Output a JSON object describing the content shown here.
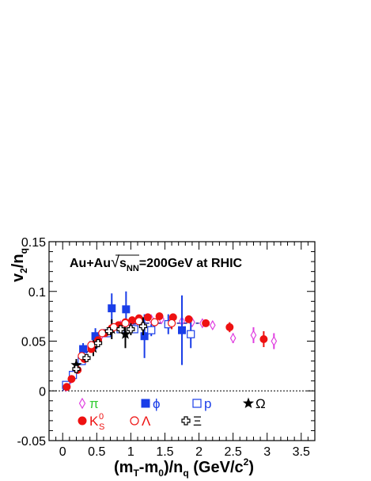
{
  "chart_data": {
    "type": "scatter",
    "title": "",
    "annotation": {
      "prefix": "Au+Au",
      "sqrt_symbol": "√",
      "s": "s",
      "nn": "NN",
      "suffix": "=200GeV at RHIC"
    },
    "xlabel": {
      "open": "(m",
      "sub1": "T",
      "mid": "-m",
      "sub2": "0",
      "mid2": ")/n",
      "sub3": "q",
      "unit": " (GeV/c",
      "sup": "2",
      "close": ")"
    },
    "ylabel": {
      "main": "v",
      "sub1": "2",
      "slash": "/n",
      "sub2": "q"
    },
    "xlim": [
      -0.2,
      3.7
    ],
    "ylim": [
      -0.05,
      0.15
    ],
    "xticks": [
      "0",
      "0.5",
      "1",
      "1.5",
      "2",
      "2.5",
      "3",
      "3.5"
    ],
    "xtick_values": [
      0,
      0.5,
      1,
      1.5,
      2,
      2.5,
      3,
      3.5
    ],
    "yticks": [
      "-0.05",
      "0",
      "0.05",
      "0.1",
      "0.15"
    ],
    "ytick_values": [
      -0.05,
      0,
      0.05,
      0.1,
      0.15
    ],
    "zero_line": true,
    "legend": {
      "placement": "bottom",
      "entries": [
        {
          "key": "pi",
          "label": "π",
          "marker": "diamond-open",
          "color": "#e040e0",
          "label_color": "#33cc33"
        },
        {
          "key": "phi",
          "label": "ϕ",
          "marker": "square-filled",
          "color": "#1a3ee8",
          "label_color": "#1a3ee8"
        },
        {
          "key": "p",
          "label": "p",
          "marker": "square-open",
          "color": "#1a3ee8",
          "label_color": "#1a3ee8"
        },
        {
          "key": "omega",
          "label": "Ω",
          "marker": "star",
          "color": "#000000",
          "label_color": "#000000"
        },
        {
          "key": "ks",
          "label": "K",
          "sub": "S",
          "sup": "0",
          "marker": "circle-filled",
          "color": "#ee1111",
          "label_color": "#ee1111"
        },
        {
          "key": "lambda",
          "label": "Λ",
          "marker": "circle-open",
          "color": "#ee1111",
          "label_color": "#ee1111"
        },
        {
          "key": "xi",
          "label": "Ξ",
          "marker": "cross-open",
          "color": "#000000",
          "label_color": "#000000"
        }
      ]
    },
    "series": [
      {
        "key": "pi",
        "marker": "diamond-open",
        "color": "#e040e0",
        "x": [
          0.05,
          0.12,
          0.2,
          0.3,
          0.4,
          0.55,
          0.7,
          0.85,
          1.0,
          1.15,
          1.3,
          1.45,
          1.6,
          1.75,
          1.9,
          2.05,
          2.2,
          2.5,
          2.8,
          3.1
        ],
        "y": [
          0.004,
          0.012,
          0.022,
          0.033,
          0.044,
          0.054,
          0.061,
          0.066,
          0.069,
          0.071,
          0.072,
          0.072,
          0.071,
          0.07,
          0.069,
          0.068,
          0.066,
          0.053,
          0.056,
          0.05
        ],
        "yerr": [
          0.001,
          0.001,
          0.001,
          0.001,
          0.001,
          0.001,
          0.001,
          0.001,
          0.002,
          0.002,
          0.002,
          0.002,
          0.003,
          0.003,
          0.003,
          0.004,
          0.004,
          0.005,
          0.008,
          0.008
        ]
      },
      {
        "key": "phi",
        "marker": "square-filled",
        "color": "#1a3ee8",
        "x": [
          0.3,
          0.48,
          0.72,
          0.93,
          1.2,
          1.75
        ],
        "y": [
          0.042,
          0.055,
          0.083,
          0.082,
          0.055,
          0.061
        ],
        "yerr": [
          0.006,
          0.008,
          0.015,
          0.018,
          0.022,
          0.035
        ]
      },
      {
        "key": "p",
        "marker": "square-open",
        "color": "#1a3ee8",
        "x": [
          0.05,
          0.15,
          0.28,
          0.45,
          0.65,
          0.85,
          1.05,
          1.3,
          1.55,
          1.88
        ],
        "y": [
          0.006,
          0.016,
          0.03,
          0.046,
          0.058,
          0.062,
          0.062,
          0.061,
          0.067,
          0.057
        ],
        "yerr": [
          0.001,
          0.001,
          0.001,
          0.002,
          0.002,
          0.003,
          0.004,
          0.006,
          0.01,
          0.014
        ]
      },
      {
        "key": "omega",
        "marker": "star",
        "color": "#000000",
        "x": [
          0.2,
          0.45,
          0.72,
          0.92
        ],
        "y": [
          0.026,
          0.043,
          0.062,
          0.057
        ],
        "yerr": [
          0.006,
          0.008,
          0.01,
          0.014
        ]
      },
      {
        "key": "ks",
        "marker": "circle-filled",
        "color": "#ee1111",
        "x": [
          0.06,
          0.13,
          0.22,
          0.32,
          0.42,
          0.52,
          0.62,
          0.72,
          0.82,
          0.92,
          1.02,
          1.12,
          1.25,
          1.42,
          1.62,
          1.85,
          2.1,
          2.45,
          2.95
        ],
        "y": [
          0.004,
          0.012,
          0.021,
          0.032,
          0.042,
          0.051,
          0.058,
          0.063,
          0.066,
          0.069,
          0.071,
          0.073,
          0.074,
          0.075,
          0.074,
          0.072,
          0.068,
          0.064,
          0.052
        ],
        "yerr": [
          0.0008,
          0.0008,
          0.0008,
          0.0008,
          0.0008,
          0.0008,
          0.0008,
          0.001,
          0.001,
          0.001,
          0.001,
          0.0012,
          0.0015,
          0.002,
          0.002,
          0.003,
          0.003,
          0.005,
          0.008
        ]
      },
      {
        "key": "lambda",
        "marker": "circle-open",
        "color": "#ee1111",
        "x": [
          0.28,
          0.42,
          0.58,
          0.75,
          0.92,
          1.12,
          1.35,
          1.6
        ],
        "y": [
          0.035,
          0.046,
          0.058,
          0.064,
          0.068,
          0.07,
          0.069,
          0.068
        ],
        "yerr": [
          0.001,
          0.001,
          0.001,
          0.002,
          0.002,
          0.003,
          0.004,
          0.006
        ]
      },
      {
        "key": "xi",
        "marker": "cross-open",
        "color": "#000000",
        "x": [
          0.2,
          0.35,
          0.52,
          0.68,
          0.85,
          1.0,
          1.18
        ],
        "y": [
          0.022,
          0.033,
          0.048,
          0.06,
          0.062,
          0.062,
          0.065
        ],
        "yerr": [
          0.002,
          0.002,
          0.002,
          0.003,
          0.004,
          0.006,
          0.009
        ]
      }
    ],
    "fit_curve": {
      "style": "dashed",
      "color": "#1a1aa0",
      "x": [
        0.0,
        0.1,
        0.2,
        0.3,
        0.4,
        0.5,
        0.6,
        0.7,
        0.8,
        0.9,
        1.0,
        1.2,
        1.4,
        1.6,
        1.8,
        2.0
      ],
      "y": [
        0.0,
        0.011,
        0.022,
        0.033,
        0.043,
        0.051,
        0.057,
        0.061,
        0.064,
        0.066,
        0.067,
        0.068,
        0.068,
        0.068,
        0.068,
        0.068
      ]
    }
  }
}
